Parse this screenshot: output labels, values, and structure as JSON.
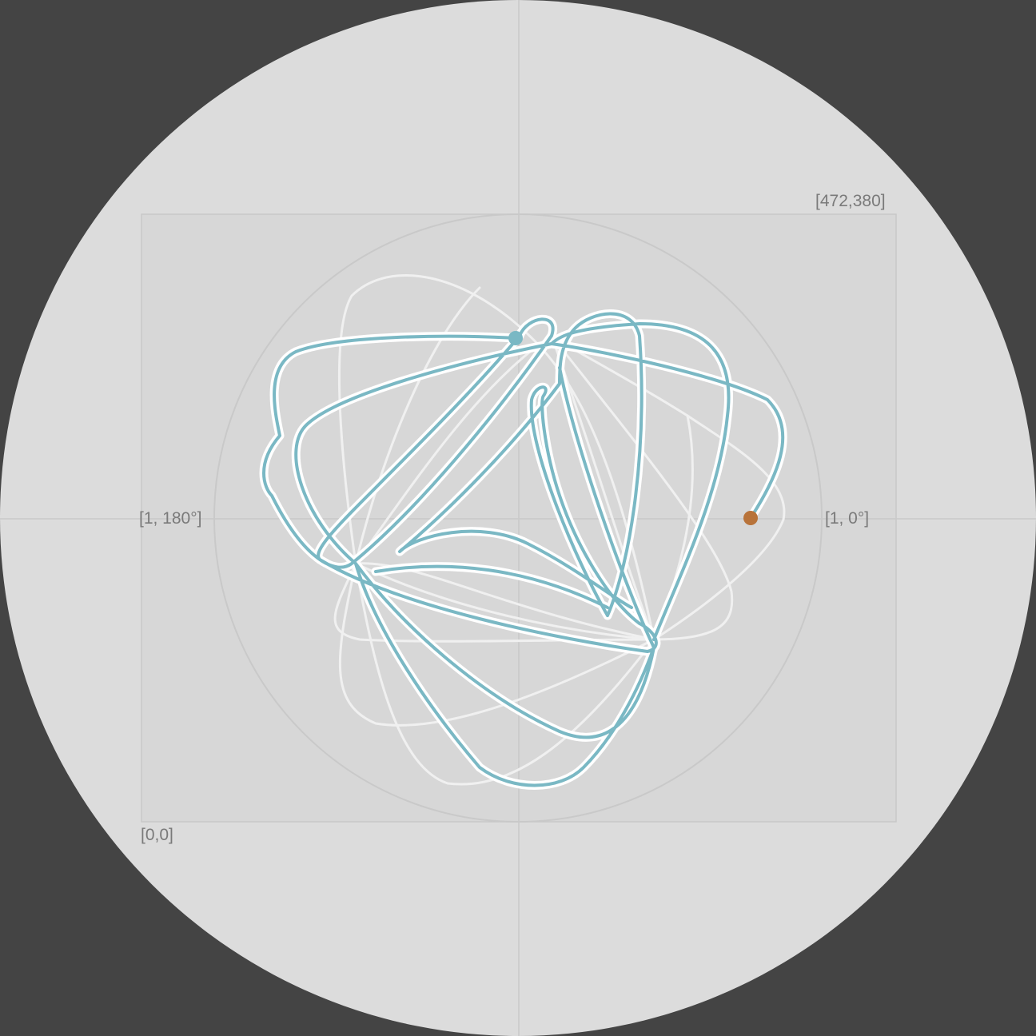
{
  "labels": {
    "top_right_corner": "[472,380]",
    "bottom_left_corner": "[0,0]",
    "angle_180": "[1, 180°]",
    "angle_0": "[1, 0°]"
  },
  "colors": {
    "background": "#444444",
    "outer_disc": "#dcdcdc",
    "inner_rect": "#d5d5d5",
    "grid": "#c8c8c8",
    "ghost_curve": "#f0f0f0",
    "trace_outline": "#ffffff",
    "trace": "#7ab8c4",
    "start_marker": "#7ab8c4",
    "end_marker": "#b8733a"
  }
}
